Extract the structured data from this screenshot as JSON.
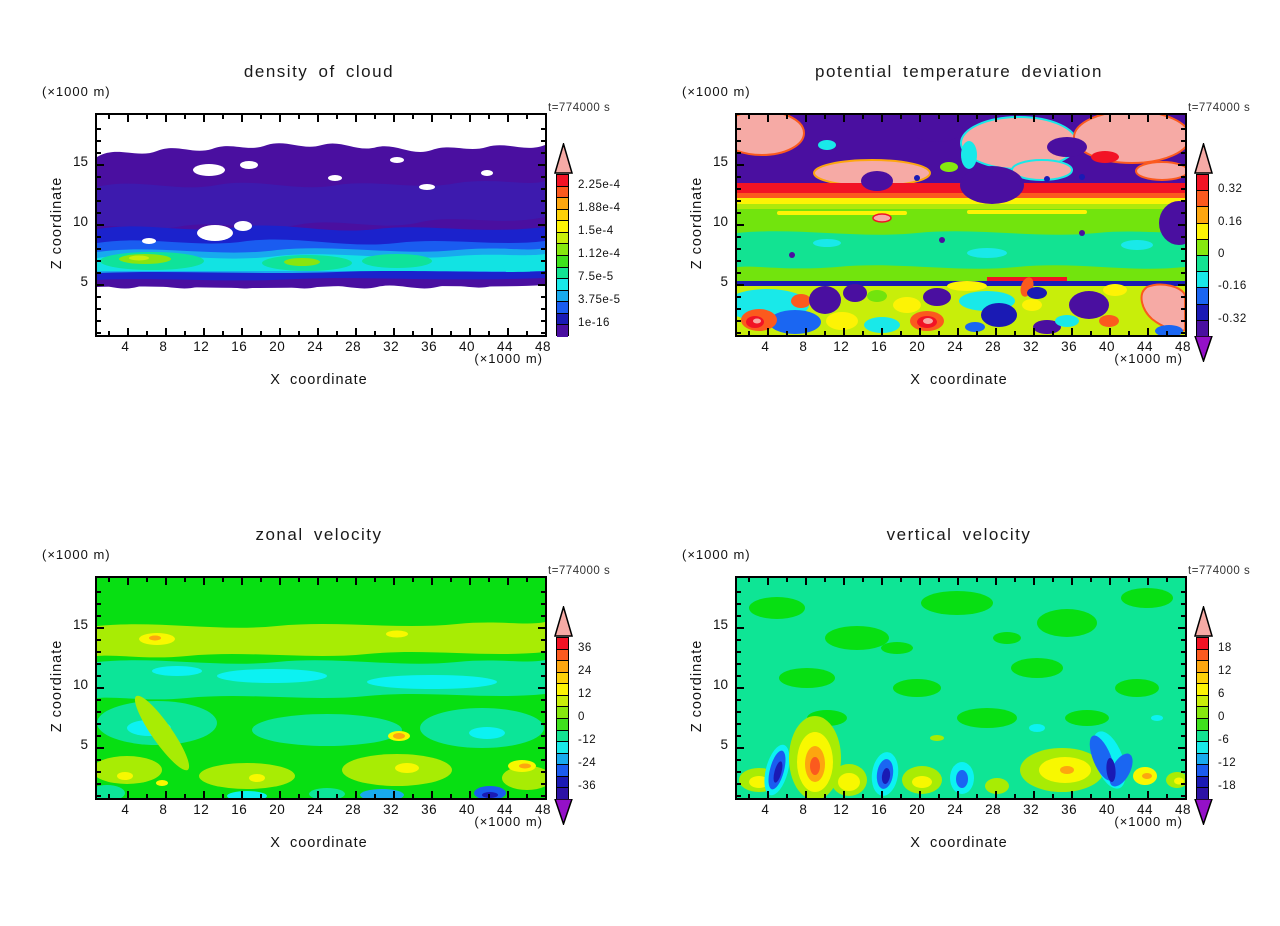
{
  "page": {
    "background": "#ffffff",
    "kind": "2x2 grid of filled contour cross-sections (GrADS-style atmospheric model output)"
  },
  "shared": {
    "time_label": "t=774000 s",
    "x_axis_label": "X coordinate",
    "y_axis_label": "Z coordinate",
    "x_unit": "(×1000 m)",
    "y_unit": "(×1000 m)"
  },
  "chart_data": [
    {
      "type": "contour",
      "title": "density of cloud",
      "time": "t=774000 s",
      "xlabel": "X coordinate",
      "ylabel": "Z coordinate",
      "x_unit": "(×1000 m)",
      "y_unit": "(×1000 m)",
      "xlim": [
        0.8,
        48.0
      ],
      "ylim": [
        0.73,
        19.06
      ],
      "x_ticks": [
        4,
        8,
        12,
        16,
        20,
        24,
        28,
        32,
        36,
        40,
        44,
        48
      ],
      "x_minor_step": 2,
      "y_minor_step": 1,
      "y_ticks": [
        5,
        10,
        15
      ],
      "colorbar": {
        "labels": [
          "2.25e-4",
          "1.88e-4",
          "1.5e-4",
          "1.12e-4",
          "7.5e-5",
          "3.75e-5",
          "1e-16"
        ],
        "label_positions": [
          1,
          3,
          5,
          7,
          9,
          11,
          13
        ],
        "segments": [
          "#f21325",
          "#fb5a1e",
          "#fda60f",
          "#fdd108",
          "#fdf305",
          "#c8ee0a",
          "#86e80e",
          "#3ee11c",
          "#12e392",
          "#19e9e9",
          "#18aaee",
          "#1a5cf0",
          "#1a1ab4",
          "#4a0fa0"
        ],
        "top_arrow": "#f6aaa5",
        "bottom_arrow": null
      },
      "description": "Cloud layer between z=5 and z=17 km over white (zero) background: violet low densities aloft, blue band near z=10, cyan-green-yellow maxima (~1e-4 to 1.9e-4) near cloud base z=6-8 km."
    },
    {
      "type": "contour",
      "title": "potential temperature deviation",
      "time": "t=774000 s",
      "xlabel": "X coordinate",
      "ylabel": "Z coordinate",
      "x_unit": "(×1000 m)",
      "y_unit": "(×1000 m)",
      "xlim": [
        0.8,
        48.0
      ],
      "ylim": [
        0.73,
        19.06
      ],
      "x_ticks": [
        4,
        8,
        12,
        16,
        20,
        24,
        28,
        32,
        36,
        40,
        44,
        48
      ],
      "x_minor_step": 2,
      "y_minor_step": 1,
      "y_ticks": [
        5,
        10,
        15
      ],
      "colorbar": {
        "labels": [
          "0.32",
          "0.16",
          "0",
          "-0.16",
          "-0.32"
        ],
        "label_positions": [
          1,
          3,
          5,
          7,
          9
        ],
        "segments": [
          "#f21325",
          "#fb5a1e",
          "#fda60f",
          "#fdf305",
          "#86e80e",
          "#12e392",
          "#19e9e9",
          "#1a66f2",
          "#1a1ab4",
          "#4a0fa0"
        ],
        "top_arrow": "#f6aaa5",
        "bottom_arrow": "#9410c8"
      },
      "description": "Mixed warm (salmon >0.4) and cold (violet <-0.4) anomalies above z=13 km, warm red band at z~13, near-zero green layer z=5-12, sharp cold navy line at z=5, turbulent boundary layer below with alternating warm and cold plumes."
    },
    {
      "type": "contour",
      "title": "zonal velocity",
      "time": "t=774000 s",
      "xlabel": "X coordinate",
      "ylabel": "Z coordinate",
      "x_unit": "(×1000 m)",
      "y_unit": "(×1000 m)",
      "xlim": [
        0.8,
        48.0
      ],
      "ylim": [
        0.73,
        19.06
      ],
      "x_ticks": [
        4,
        8,
        12,
        16,
        20,
        24,
        28,
        32,
        36,
        40,
        44,
        48
      ],
      "x_minor_step": 2,
      "y_minor_step": 1,
      "y_ticks": [
        5,
        10,
        15
      ],
      "colorbar": {
        "labels": [
          "36",
          "24",
          "12",
          "0",
          "-12",
          "-24",
          "-36"
        ],
        "label_positions": [
          1,
          3,
          5,
          7,
          9,
          11,
          13
        ],
        "segments": [
          "#f21325",
          "#fb5a1e",
          "#fda60f",
          "#fdd108",
          "#fdf305",
          "#c8ee0a",
          "#86e80e",
          "#3ee11c",
          "#12e392",
          "#19e9e9",
          "#18aaee",
          "#1a5cf0",
          "#1a1ab4",
          "#2d12a5"
        ],
        "top_arrow": "#f6aaa5",
        "bottom_arrow": "#9410c8"
      },
      "description": "Weak zonal wind: green (~0-6) background, yellow-green band (6-12) at z=13-15 with small yellow maxima, easterly teal/cyan band (-6 to -12) at z=9-12 and pockets below z=9; isolated orange spots (~18) and blue patches (-12 to -24) near the surface."
    },
    {
      "type": "contour",
      "title": "vertical velocity",
      "time": "t=774000 s",
      "xlabel": "X coordinate",
      "ylabel": "Z coordinate",
      "x_unit": "(×1000 m)",
      "y_unit": "(×1000 m)",
      "xlim": [
        0.8,
        48.0
      ],
      "ylim": [
        0.73,
        19.06
      ],
      "x_ticks": [
        4,
        8,
        12,
        16,
        20,
        24,
        28,
        32,
        36,
        40,
        44,
        48
      ],
      "x_minor_step": 2,
      "y_minor_step": 1,
      "y_ticks": [
        5,
        10,
        15
      ],
      "colorbar": {
        "labels": [
          "18",
          "12",
          "6",
          "0",
          "-6",
          "-12",
          "-18"
        ],
        "label_positions": [
          1,
          3,
          5,
          7,
          9,
          11,
          13
        ],
        "segments": [
          "#f21325",
          "#fb5a1e",
          "#fda60f",
          "#fdd108",
          "#fdf305",
          "#c8ee0a",
          "#86e80e",
          "#3ee11c",
          "#12e392",
          "#19e9e9",
          "#18aaee",
          "#1a5cf0",
          "#1a1ab4",
          "#2d12a5"
        ],
        "top_arrow": "#f6aaa5",
        "bottom_arrow": "#9410c8"
      },
      "description": "Near-zero (sea-green) field aloft with mottling; convective plumes below z=6: strong updraft (orange, ~12-15) at x~8, yellow updrafts at x~2,12,20,36-38,47, downdrafts (blue/navy, -9 to -15) at x~4,16,24,43-45."
    }
  ]
}
